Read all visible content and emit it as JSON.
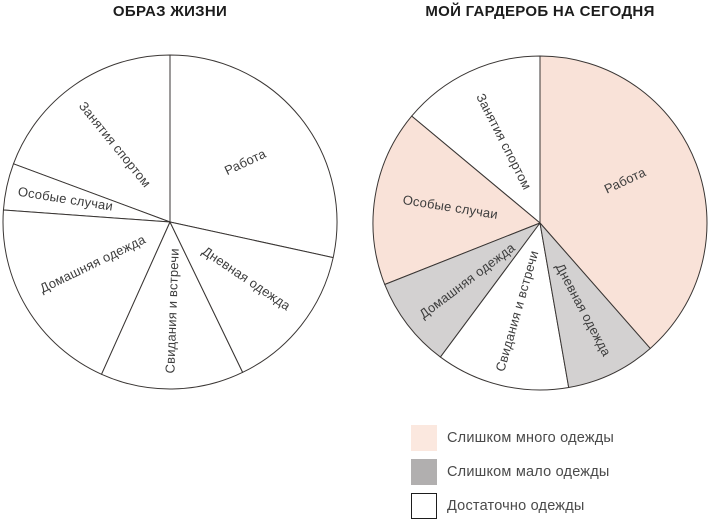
{
  "colors": {
    "line": "#3a3634",
    "too_many": "#f9e2d8",
    "too_few": "#d3d1d1",
    "enough": "#ffffff"
  },
  "legend": {
    "items": [
      {
        "label": "Слишком много одежды",
        "color": "#fbe8df",
        "border": false
      },
      {
        "label": "Слишком мало одежды",
        "color": "#b1afaf",
        "border": false
      },
      {
        "label": "Достаточно одежды",
        "color": "#ffffff",
        "border": true
      }
    ]
  },
  "chart_data": [
    {
      "type": "pie",
      "title": "ОБРАЗ ЖИЗНИ",
      "legend_position": "none",
      "angle_convention": "degrees CCW from +x axis",
      "slices": [
        {
          "label": "Работа",
          "start_deg": -12.3,
          "end_deg": 90.0,
          "value_deg": 102.3,
          "pct": 28.4,
          "fill": "enough",
          "label_angle_deg": 38,
          "label_r": 96,
          "label_rot_deg": -25
        },
        {
          "label": "Занятия спортом",
          "start_deg": 90.0,
          "end_deg": 159.6,
          "value_deg": 69.6,
          "pct": 19.3,
          "fill": "enough",
          "label_angle_deg": 126,
          "label_r": 95,
          "label_rot_deg": 51
        },
        {
          "label": "Особые случаи",
          "start_deg": 159.6,
          "end_deg": 175.9,
          "value_deg": 16.3,
          "pct": 4.5,
          "fill": "enough",
          "label_angle_deg": 168,
          "label_r": 107,
          "label_rot_deg": 9
        },
        {
          "label": "Домашняя одежда",
          "start_deg": 175.9,
          "end_deg": 245.8,
          "value_deg": 69.9,
          "pct": 19.4,
          "fill": "enough",
          "label_angle_deg": 209,
          "label_r": 88,
          "label_rot_deg": -26
        },
        {
          "label": "Свидания и встречи",
          "start_deg": 245.8,
          "end_deg": 295.8,
          "value_deg": 50.0,
          "pct": 13.9,
          "fill": "enough",
          "label_angle_deg": 272,
          "label_r": 89,
          "label_rot_deg": -88
        },
        {
          "label": "Дневная одежда",
          "start_deg": 295.8,
          "end_deg": 347.7,
          "value_deg": 51.9,
          "pct": 14.4,
          "fill": "enough",
          "label_angle_deg": 323,
          "label_r": 95,
          "label_rot_deg": 34
        }
      ]
    },
    {
      "type": "pie",
      "title": "МОЙ ГАРДЕРОБ НА СЕГОДНЯ",
      "legend_position": "below-right",
      "angle_convention": "degrees CCW from +x axis",
      "slices": [
        {
          "label": "Работа",
          "start_deg": -48.7,
          "end_deg": 90.0,
          "value_deg": 138.7,
          "pct": 38.5,
          "fill": "too_many",
          "label_angle_deg": 26,
          "label_r": 95,
          "label_rot_deg": -25
        },
        {
          "label": "Занятия спортом",
          "start_deg": 90.0,
          "end_deg": 140.2,
          "value_deg": 50.2,
          "pct": 13.9,
          "fill": "enough",
          "label_angle_deg": 114.5,
          "label_r": 89,
          "label_rot_deg": 63
        },
        {
          "label": "Особые случаи",
          "start_deg": 140.2,
          "end_deg": 201.6,
          "value_deg": 61.4,
          "pct": 17.1,
          "fill": "too_many",
          "label_angle_deg": 170.5,
          "label_r": 91,
          "label_rot_deg": 9
        },
        {
          "label": "Домашняя одежда",
          "start_deg": 201.6,
          "end_deg": 233.4,
          "value_deg": 31.8,
          "pct": 8.8,
          "fill": "too_few",
          "label_angle_deg": 219,
          "label_r": 93,
          "label_rot_deg": -37
        },
        {
          "label": "Свидания и встречи",
          "start_deg": 233.4,
          "end_deg": 279.9,
          "value_deg": 46.5,
          "pct": 12.9,
          "fill": "enough",
          "label_angle_deg": 256,
          "label_r": 91,
          "label_rot_deg": -74
        },
        {
          "label": "Дневная одежда",
          "start_deg": 279.9,
          "end_deg": 311.3,
          "value_deg": 31.4,
          "pct": 8.7,
          "fill": "too_few",
          "label_angle_deg": 296,
          "label_r": 97,
          "label_rot_deg": 62
        }
      ]
    }
  ]
}
